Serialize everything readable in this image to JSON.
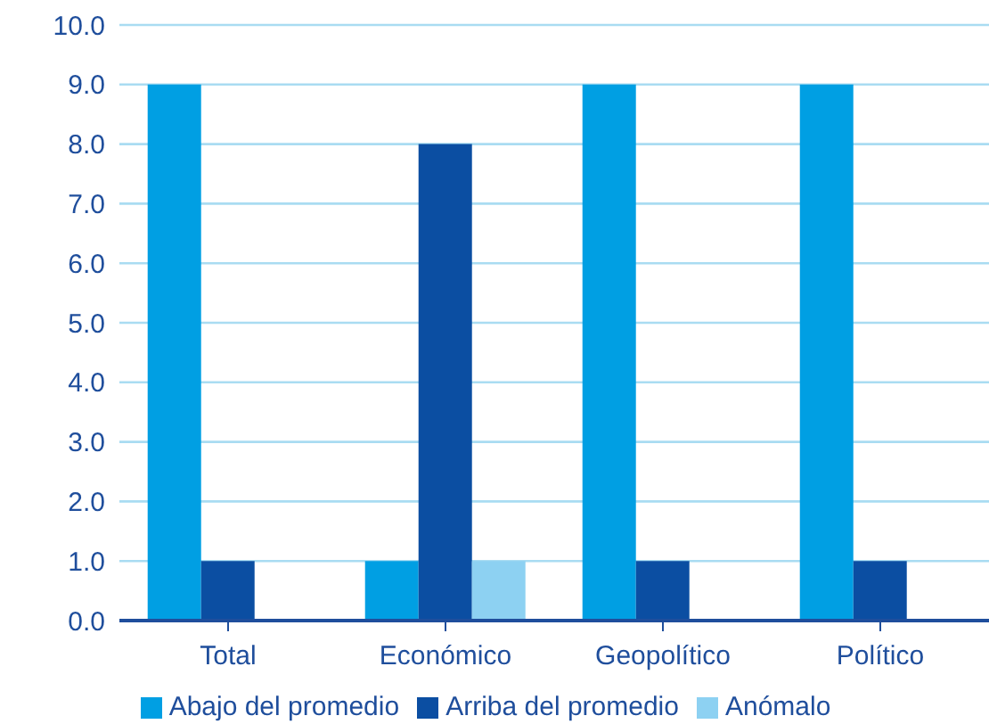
{
  "chart_data": {
    "type": "bar",
    "categories": [
      "Total",
      "Económico",
      "Geopolítico",
      "Político"
    ],
    "series": [
      {
        "name": "Abajo del  promedio",
        "color": "#009fe3",
        "values": [
          9,
          1,
          9,
          9
        ]
      },
      {
        "name": "Arriba del  promedio",
        "color": "#0b4ea2",
        "values": [
          1,
          8,
          1,
          1
        ]
      },
      {
        "name": "Anómalo",
        "color": "#8dd1f2",
        "values": [
          0,
          1,
          0,
          0
        ]
      }
    ],
    "ylim": [
      0,
      10
    ],
    "yticks": [
      {
        "value": 0,
        "label": "0.0"
      },
      {
        "value": 1,
        "label": "1.0"
      },
      {
        "value": 2,
        "label": "2.0"
      },
      {
        "value": 3,
        "label": "3.0"
      },
      {
        "value": 4,
        "label": "4.0"
      },
      {
        "value": 5,
        "label": "5.0"
      },
      {
        "value": 6,
        "label": "6.0"
      },
      {
        "value": 7,
        "label": "7.0"
      },
      {
        "value": 8,
        "label": "8.0"
      },
      {
        "value": 9,
        "label": "9.0"
      },
      {
        "value": 10,
        "label": "10.0"
      }
    ],
    "grid": "y",
    "legend": "bottom"
  }
}
